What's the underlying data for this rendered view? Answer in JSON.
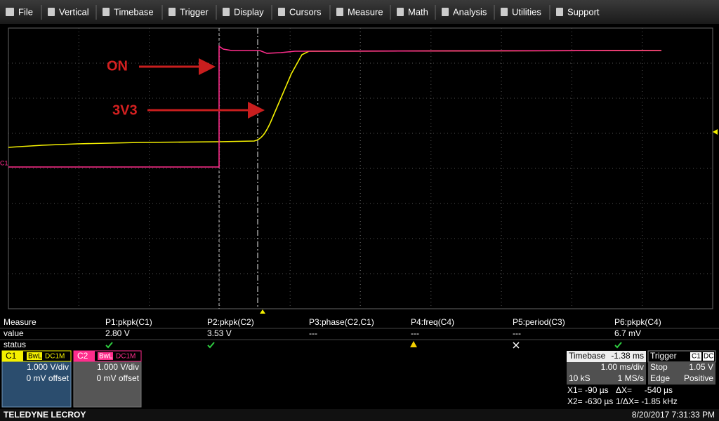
{
  "menu": [
    "File",
    "Vertical",
    "Timebase",
    "Trigger",
    "Display",
    "Cursors",
    "Measure",
    "Math",
    "Analysis",
    "Utilities",
    "Support"
  ],
  "annotations": {
    "on": "ON",
    "rail": "3V3"
  },
  "channel_marker": "C1",
  "measure": {
    "headers": [
      "Measure",
      "P1:pkpk(C1)",
      "P2:pkpk(C2)",
      "P3:phase(C2,C1)",
      "P4:freq(C4)",
      "P5:period(C3)",
      "P6:pkpk(C4)"
    ],
    "value_row": [
      "value",
      "2.80 V",
      "3.53 V",
      "---",
      "---",
      "---",
      "6.7 mV"
    ],
    "status_label": "status"
  },
  "channels": [
    {
      "name": "C1",
      "bandwidth": "BwL",
      "coupling": "DC1M",
      "scale": "1.000 V/div",
      "offset": "0 mV offset"
    },
    {
      "name": "C2",
      "bandwidth": "BwL",
      "coupling": "DC1M",
      "scale": "1.000 V/div",
      "offset": "0 mV offset"
    }
  ],
  "timebase": {
    "label": "Timebase",
    "delay": "-1.38 ms",
    "scale": "1.00 ms/div",
    "samples": "10 kS",
    "rate": "1 MS/s"
  },
  "trigger": {
    "label": "Trigger",
    "source": "C1",
    "coupling": "DC",
    "mode": "Stop",
    "level": "1.05 V",
    "type": "Edge",
    "slope": "Positive"
  },
  "cursors": {
    "x1": "X1= -90 µs",
    "dx": "ΔX=",
    "dx_value": "-540 µs",
    "x2": "X2= -630 µs",
    "inv_dx": "1/ΔX= -1.85 kHz"
  },
  "footer": {
    "brand": "TELEDYNE LECROY",
    "timestamp": "8/20/2017 7:31:33 PM"
  }
}
